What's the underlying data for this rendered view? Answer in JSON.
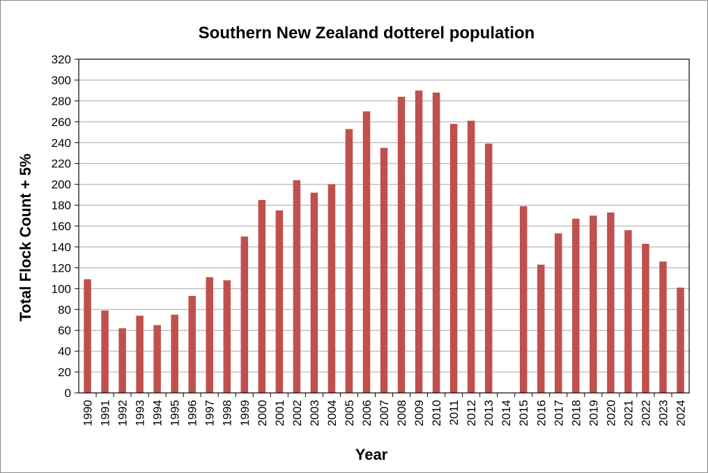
{
  "chart_data": {
    "type": "bar",
    "title": "Southern New Zealand dotterel population",
    "xlabel": "Year",
    "ylabel": "Total Flock Count + 5%",
    "ylim": [
      0,
      320
    ],
    "yticks": [
      0,
      20,
      40,
      60,
      80,
      100,
      120,
      140,
      160,
      180,
      200,
      220,
      240,
      260,
      280,
      300,
      320
    ],
    "grid": true,
    "legend": "none",
    "bar_color": "#c0504d",
    "categories": [
      "1990",
      "1991",
      "1992",
      "1993",
      "1994",
      "1995",
      "1996",
      "1997",
      "1998",
      "1999",
      "2000",
      "2001",
      "2002",
      "2003",
      "2004",
      "2005",
      "2006",
      "2007",
      "2008",
      "2009",
      "2010",
      "2011",
      "2012",
      "2013",
      "2014",
      "2015",
      "2016",
      "2017",
      "2018",
      "2019",
      "2020",
      "2021",
      "2022",
      "2023",
      "2024"
    ],
    "values": [
      109,
      79,
      62,
      74,
      65,
      75,
      93,
      111,
      108,
      150,
      185,
      175,
      204,
      192,
      200,
      253,
      270,
      235,
      284,
      290,
      288,
      258,
      261,
      239,
      null,
      179,
      123,
      153,
      167,
      170,
      173,
      156,
      143,
      126,
      101
    ]
  }
}
